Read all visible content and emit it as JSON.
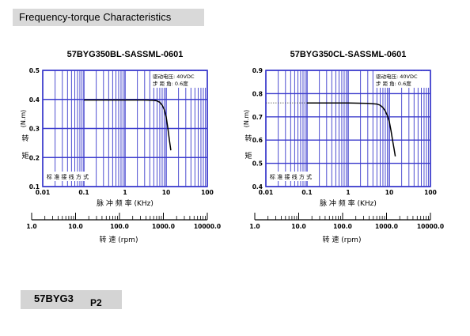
{
  "header": {
    "title": "Frequency-torque Characteristics"
  },
  "footer": {
    "model": "57BYG3",
    "page": "P2"
  },
  "chart_data": [
    {
      "type": "line",
      "title": "57BYG350BL-SASSML-0601",
      "x_scale": "log",
      "xlim": [
        0.01,
        100
      ],
      "ylim": [
        0.1,
        0.5
      ],
      "x_ticks": [
        "0.01",
        "0.1",
        "1",
        "10",
        "100"
      ],
      "y_ticks": [
        "0.1",
        "0.2",
        "0.3",
        "0.4",
        "0.5"
      ],
      "xlabel": "脉 冲 频 率 (KHz)",
      "ylabel_unit": "(N.m)",
      "ylabel_name": [
        "转",
        "矩"
      ],
      "annotation_lines": [
        "驱动电压: 40VDC",
        "步 距 角: 0.6度"
      ],
      "wiring_note": "标 准 接 线 方 式",
      "rpm_ticks": [
        "1.0",
        "10.0",
        "100.0",
        "1000.0",
        "10000.0"
      ],
      "rpm_label": "转 速 (rpm)",
      "grid": true,
      "curve_color": "#000000",
      "grid_color": "#3b3bcc",
      "series": [
        {
          "x": [
            0.1,
            0.5,
            1,
            3,
            5,
            6,
            7,
            8,
            9,
            10,
            11,
            12,
            13
          ],
          "y": [
            0.398,
            0.398,
            0.398,
            0.398,
            0.397,
            0.395,
            0.39,
            0.38,
            0.365,
            0.34,
            0.3,
            0.26,
            0.225
          ]
        }
      ],
      "dotted_from_axis": false
    },
    {
      "type": "line",
      "title": "57BYG350CL-SASSML-0601",
      "x_scale": "log",
      "xlim": [
        0.01,
        100
      ],
      "ylim": [
        0.4,
        0.9
      ],
      "x_ticks": [
        "0.01",
        "0.1",
        "1",
        "10",
        "100"
      ],
      "y_ticks": [
        "0.4",
        "0.5",
        "0.6",
        "0.7",
        "0.8",
        "0.9"
      ],
      "xlabel": "脉 冲 频 率 (KHz)",
      "ylabel_unit": "(N.m)",
      "ylabel_name": [
        "转",
        "矩"
      ],
      "annotation_lines": [
        "驱动电压: 40VDC",
        "步 距 角: 0.6度"
      ],
      "wiring_note": "标 准 接 线 方 式",
      "rpm_ticks": [
        "1.0",
        "10.0",
        "100.0",
        "1000.0",
        "10000.0"
      ],
      "rpm_label": "转 速 (rpm)",
      "grid": true,
      "curve_color": "#000000",
      "grid_color": "#3b3bcc",
      "series": [
        {
          "x": [
            0.1,
            0.5,
            1,
            3,
            5,
            6,
            7,
            8,
            9,
            10,
            11,
            12,
            13,
            14
          ],
          "y": [
            0.76,
            0.76,
            0.76,
            0.758,
            0.755,
            0.75,
            0.74,
            0.725,
            0.705,
            0.68,
            0.64,
            0.6,
            0.565,
            0.53
          ]
        }
      ],
      "dotted_from_axis": true
    }
  ]
}
